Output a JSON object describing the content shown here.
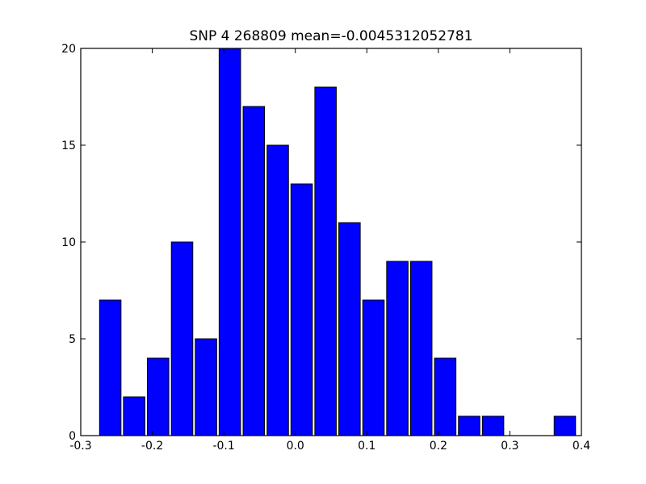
{
  "chart_data": {
    "type": "bar",
    "title": "SNP 4 268809 mean=-0.0045312052781",
    "xlabel": "",
    "ylabel": "",
    "xlim": [
      -0.3,
      0.4
    ],
    "ylim": [
      0,
      20
    ],
    "bin_width": 0.0333,
    "bins": [
      {
        "x0": -0.2737,
        "value": 7
      },
      {
        "x0": -0.2403,
        "value": 2
      },
      {
        "x0": -0.2068,
        "value": 4
      },
      {
        "x0": -0.1733,
        "value": 10
      },
      {
        "x0": -0.1399,
        "value": 5
      },
      {
        "x0": -0.1065,
        "value": 20
      },
      {
        "x0": -0.073,
        "value": 17
      },
      {
        "x0": -0.0395,
        "value": 15
      },
      {
        "x0": -0.0061,
        "value": 13
      },
      {
        "x0": 0.0273,
        "value": 18
      },
      {
        "x0": 0.0608,
        "value": 11
      },
      {
        "x0": 0.0943,
        "value": 7
      },
      {
        "x0": 0.1277,
        "value": 9
      },
      {
        "x0": 0.1611,
        "value": 9
      },
      {
        "x0": 0.1946,
        "value": 4
      },
      {
        "x0": 0.2281,
        "value": 1
      },
      {
        "x0": 0.2615,
        "value": 1
      },
      {
        "x0": 0.2949,
        "value": 0
      },
      {
        "x0": 0.3284,
        "value": 0
      },
      {
        "x0": 0.3619,
        "value": 1
      }
    ],
    "xticks": [
      {
        "value": -0.3,
        "label": "-0.3"
      },
      {
        "value": -0.2,
        "label": "-0.2"
      },
      {
        "value": -0.1,
        "label": "-0.1"
      },
      {
        "value": 0.0,
        "label": "0.0"
      },
      {
        "value": 0.1,
        "label": "0.1"
      },
      {
        "value": 0.2,
        "label": "0.2"
      },
      {
        "value": 0.3,
        "label": "0.3"
      },
      {
        "value": 0.4,
        "label": "0.4"
      }
    ],
    "yticks": [
      {
        "value": 0,
        "label": "0"
      },
      {
        "value": 5,
        "label": "5"
      },
      {
        "value": 10,
        "label": "10"
      },
      {
        "value": 15,
        "label": "15"
      },
      {
        "value": 20,
        "label": "20"
      }
    ],
    "grid": false,
    "bar_color": "#0000ff",
    "edge_color": "#000000"
  }
}
